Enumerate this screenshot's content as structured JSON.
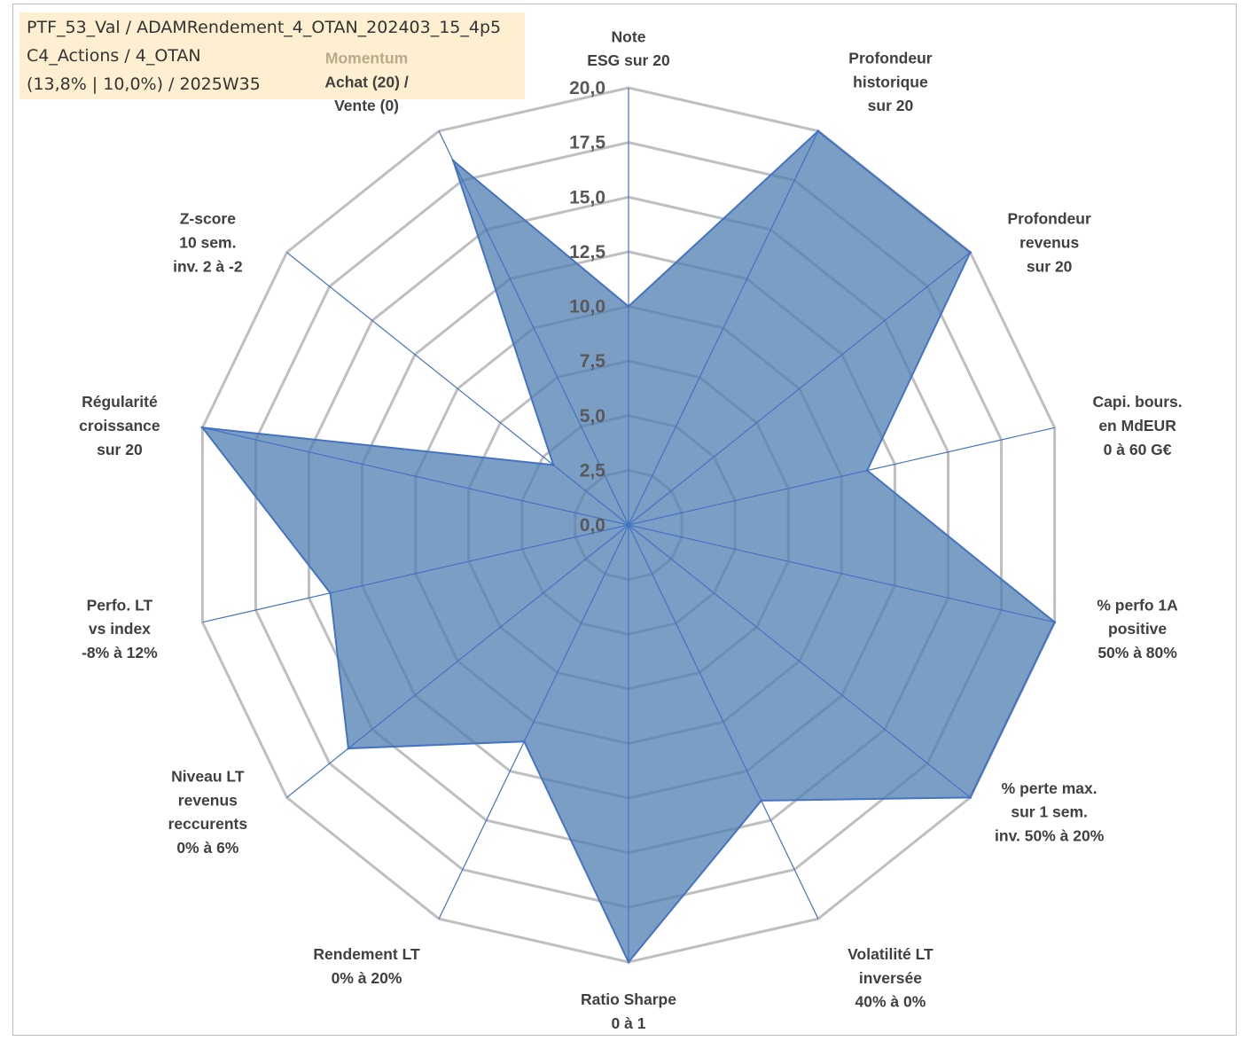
{
  "header": {
    "line1": "PTF_53_Val / ADAMRendement_4_OTAN_202403_15_4p5",
    "line2": "C4_Actions / 4_OTAN",
    "line3": "(13,8% | 10,0%) / 2025W35"
  },
  "colors": {
    "fill": "#4f7db0",
    "line": "#4472c4",
    "grid": "#bfbfbf",
    "axis": "#4472c4",
    "header_bg": "#fdefd0",
    "momentum_label": "#b8ab8a"
  },
  "chart_data": {
    "type": "radar",
    "title": "",
    "rmin": 0,
    "rmax": 20,
    "tick_values": [
      0,
      2.5,
      5,
      7.5,
      10,
      12.5,
      15,
      17.5,
      20
    ],
    "tick_labels": [
      "0,0",
      "2,5",
      "5,0",
      "7,5",
      "10,0",
      "12,5",
      "15,0",
      "17,5",
      "20,0"
    ],
    "axes": [
      {
        "lines": [
          "Note",
          "ESG sur 20"
        ]
      },
      {
        "lines": [
          "Profondeur",
          "historique",
          "sur 20"
        ]
      },
      {
        "lines": [
          "Profondeur",
          "revenus",
          "sur 20"
        ]
      },
      {
        "lines": [
          "Capi. bours.",
          "en MdEUR",
          "0 à 60 G€"
        ]
      },
      {
        "lines": [
          "% perfo 1A",
          "positive",
          "50% à 80%"
        ]
      },
      {
        "lines": [
          "% perte max.",
          "sur 1 sem.",
          "inv. 50% à 20%"
        ]
      },
      {
        "lines": [
          "Volatilité LT",
          "inversée",
          "40% à 0%"
        ]
      },
      {
        "lines": [
          "Ratio Sharpe",
          "0 à 1"
        ]
      },
      {
        "lines": [
          "Rendement LT",
          "0% à 20%"
        ]
      },
      {
        "lines": [
          "Niveau LT",
          "revenus",
          "reccurents",
          "0% à 6%"
        ]
      },
      {
        "lines": [
          "Perfo. LT",
          "vs index",
          "-8% à 12%"
        ]
      },
      {
        "lines": [
          "Régularité",
          "croissance",
          "sur 20"
        ]
      },
      {
        "lines": [
          "Z-score",
          "10 sem.",
          "inv. 2 à -2"
        ]
      },
      {
        "lines": [
          "Momentum",
          "Achat (20) /",
          "Vente (0)"
        ]
      }
    ],
    "series": [
      {
        "values": [
          10.0,
          20.0,
          20.0,
          11.2,
          20.0,
          20.0,
          14.0,
          20.0,
          11.0,
          16.4,
          14.0,
          20.0,
          4.4,
          18.5
        ]
      }
    ],
    "legend": "none"
  }
}
